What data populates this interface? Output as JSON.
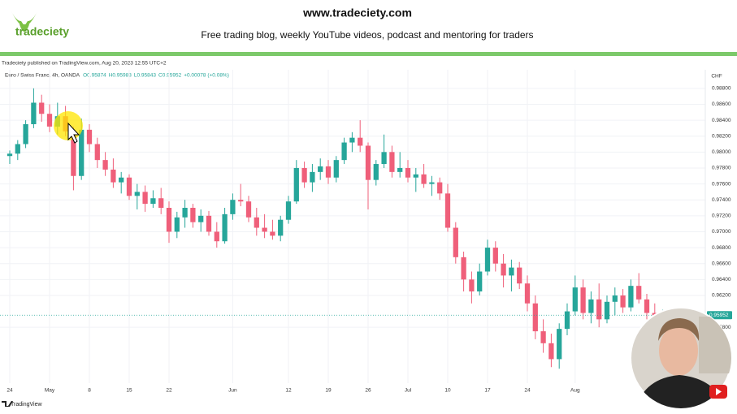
{
  "header": {
    "logo": "tradeciety",
    "url": "www.tradeciety.com",
    "tagline": "Free trading blog, weekly YouTube videos, podcast and mentoring for traders"
  },
  "chart_data": {
    "type": "candlestick",
    "published": "Tradeciety published on TradingView.com, Aug 20, 2023 12:55 UTC+2",
    "symbol": "Euro / Swiss Franc, 4h, OANDA",
    "ohlc_text": [
      "O0.95874",
      "H0.95983",
      "L0.95843",
      "C0.95952",
      "+0.00078 (+0.08%)"
    ],
    "currency": "CHF",
    "brand": "TradingView",
    "last_price": 0.95952,
    "up_color": "#26a69a",
    "down_color": "#ef5f7a",
    "last_color": "#26a69a",
    "grid": true,
    "ylim": [
      0.9517,
      0.9889
    ],
    "yticks": [
      {
        "value": 0.988,
        "label": "0.98800"
      },
      {
        "value": 0.986,
        "label": "0.98600"
      },
      {
        "value": 0.984,
        "label": "0.98400"
      },
      {
        "value": 0.982,
        "label": "0.98200"
      },
      {
        "value": 0.98,
        "label": "0.98000"
      },
      {
        "value": 0.978,
        "label": "0.97800"
      },
      {
        "value": 0.976,
        "label": "0.97600"
      },
      {
        "value": 0.974,
        "label": "0.97400"
      },
      {
        "value": 0.972,
        "label": "0.97200"
      },
      {
        "value": 0.97,
        "label": "0.97000"
      },
      {
        "value": 0.968,
        "label": "0.96800"
      },
      {
        "value": 0.966,
        "label": "0.96600"
      },
      {
        "value": 0.964,
        "label": "0.96400"
      },
      {
        "value": 0.962,
        "label": "0.96200"
      },
      {
        "value": 0.958,
        "label": "0.95800"
      }
    ],
    "categories": [
      "24",
      null,
      null,
      null,
      null,
      "May",
      null,
      null,
      null,
      null,
      "8",
      null,
      null,
      null,
      null,
      "15",
      null,
      null,
      null,
      null,
      "22",
      null,
      null,
      null,
      null,
      null,
      null,
      null,
      "Jun",
      null,
      null,
      null,
      null,
      null,
      null,
      "12",
      null,
      null,
      null,
      null,
      "19",
      null,
      null,
      null,
      null,
      "26",
      null,
      null,
      null,
      null,
      "Jul",
      null,
      null,
      null,
      null,
      "10",
      null,
      null,
      null,
      null,
      "17",
      null,
      null,
      null,
      null,
      "24",
      null,
      null,
      null,
      null,
      null,
      "Aug",
      null,
      null,
      null,
      null,
      null,
      null,
      null,
      null,
      null,
      null,
      null,
      null,
      null
    ],
    "open": [
      0.9795,
      0.9798,
      0.981,
      0.9835,
      0.9862,
      0.9848,
      0.9832,
      0.9845,
      0.9826,
      0.977,
      0.9828,
      0.981,
      0.979,
      0.9778,
      0.9762,
      0.9768,
      0.9745,
      0.975,
      0.9735,
      0.9742,
      0.973,
      0.97,
      0.9718,
      0.973,
      0.9712,
      0.972,
      0.97,
      0.9688,
      0.9722,
      0.974,
      0.9738,
      0.9718,
      0.9705,
      0.97,
      0.9695,
      0.9715,
      0.9738,
      0.978,
      0.9762,
      0.9775,
      0.9782,
      0.9768,
      0.979,
      0.9812,
      0.9818,
      0.9808,
      0.9765,
      0.9785,
      0.98,
      0.9775,
      0.978,
      0.9768,
      0.9772,
      0.976,
      0.9762,
      0.9748,
      0.9705,
      0.9668,
      0.964,
      0.9625,
      0.965,
      0.968,
      0.966,
      0.9645,
      0.9655,
      0.9635,
      0.961,
      0.9575,
      0.956,
      0.954,
      0.9578,
      0.96,
      0.963,
      0.9598,
      0.9615,
      0.959,
      0.9612,
      0.962,
      0.9605,
      0.9632,
      0.9615,
      0.9598,
      0.9585,
      0.9595,
      0.9587
    ],
    "high": [
      0.9802,
      0.9815,
      0.984,
      0.988,
      0.9872,
      0.986,
      0.9862,
      0.9858,
      0.9832,
      0.9842,
      0.9835,
      0.9818,
      0.98,
      0.9792,
      0.9775,
      0.9772,
      0.976,
      0.9758,
      0.9752,
      0.9755,
      0.9738,
      0.9725,
      0.974,
      0.9735,
      0.9728,
      0.9726,
      0.9712,
      0.973,
      0.9748,
      0.976,
      0.9745,
      0.973,
      0.9722,
      0.9715,
      0.972,
      0.9745,
      0.979,
      0.9788,
      0.9785,
      0.9792,
      0.979,
      0.9795,
      0.9818,
      0.9825,
      0.984,
      0.9812,
      0.979,
      0.9822,
      0.9808,
      0.98,
      0.979,
      0.978,
      0.9785,
      0.977,
      0.9768,
      0.976,
      0.9712,
      0.9675,
      0.965,
      0.966,
      0.969,
      0.9688,
      0.9672,
      0.9665,
      0.9662,
      0.9645,
      0.962,
      0.959,
      0.9572,
      0.9585,
      0.961,
      0.9645,
      0.964,
      0.9625,
      0.9635,
      0.962,
      0.963,
      0.9628,
      0.964,
      0.9648,
      0.9622,
      0.961,
      0.9602,
      0.96,
      0.9598
    ],
    "low": [
      0.9785,
      0.979,
      0.9805,
      0.983,
      0.9838,
      0.9825,
      0.9822,
      0.982,
      0.9752,
      0.9765,
      0.98,
      0.978,
      0.977,
      0.9755,
      0.9748,
      0.974,
      0.9728,
      0.9725,
      0.973,
      0.9722,
      0.9686,
      0.9692,
      0.9705,
      0.9705,
      0.97,
      0.9695,
      0.968,
      0.9685,
      0.9715,
      0.9732,
      0.9712,
      0.9695,
      0.9692,
      0.969,
      0.9688,
      0.971,
      0.9735,
      0.9755,
      0.975,
      0.9765,
      0.976,
      0.9762,
      0.9785,
      0.98,
      0.98,
      0.9728,
      0.9758,
      0.978,
      0.9768,
      0.9768,
      0.9762,
      0.975,
      0.9755,
      0.9745,
      0.974,
      0.97,
      0.966,
      0.9625,
      0.961,
      0.962,
      0.9645,
      0.965,
      0.963,
      0.9625,
      0.9628,
      0.96,
      0.9565,
      0.9548,
      0.953,
      0.9528,
      0.957,
      0.9595,
      0.959,
      0.9585,
      0.958,
      0.9585,
      0.9595,
      0.9598,
      0.96,
      0.961,
      0.959,
      0.9578,
      0.958,
      0.9575,
      0.9584
    ],
    "close": [
      0.9798,
      0.981,
      0.9835,
      0.9862,
      0.9848,
      0.9832,
      0.9845,
      0.9826,
      0.977,
      0.9828,
      0.981,
      0.979,
      0.9778,
      0.9762,
      0.9768,
      0.9745,
      0.975,
      0.9735,
      0.9742,
      0.973,
      0.97,
      0.9718,
      0.973,
      0.9712,
      0.972,
      0.97,
      0.9688,
      0.9722,
      0.974,
      0.9738,
      0.9718,
      0.9705,
      0.97,
      0.9695,
      0.9715,
      0.9738,
      0.978,
      0.9762,
      0.9775,
      0.9782,
      0.9768,
      0.979,
      0.9812,
      0.9818,
      0.9808,
      0.9765,
      0.9785,
      0.98,
      0.9775,
      0.978,
      0.9768,
      0.9772,
      0.976,
      0.9762,
      0.9748,
      0.9705,
      0.9668,
      0.964,
      0.9625,
      0.965,
      0.968,
      0.966,
      0.9645,
      0.9655,
      0.9635,
      0.961,
      0.9575,
      0.956,
      0.954,
      0.9578,
      0.96,
      0.963,
      0.9598,
      0.9615,
      0.959,
      0.9612,
      0.962,
      0.9605,
      0.9632,
      0.9615,
      0.9598,
      0.9585,
      0.9595,
      0.9587,
      0.9595
    ]
  }
}
